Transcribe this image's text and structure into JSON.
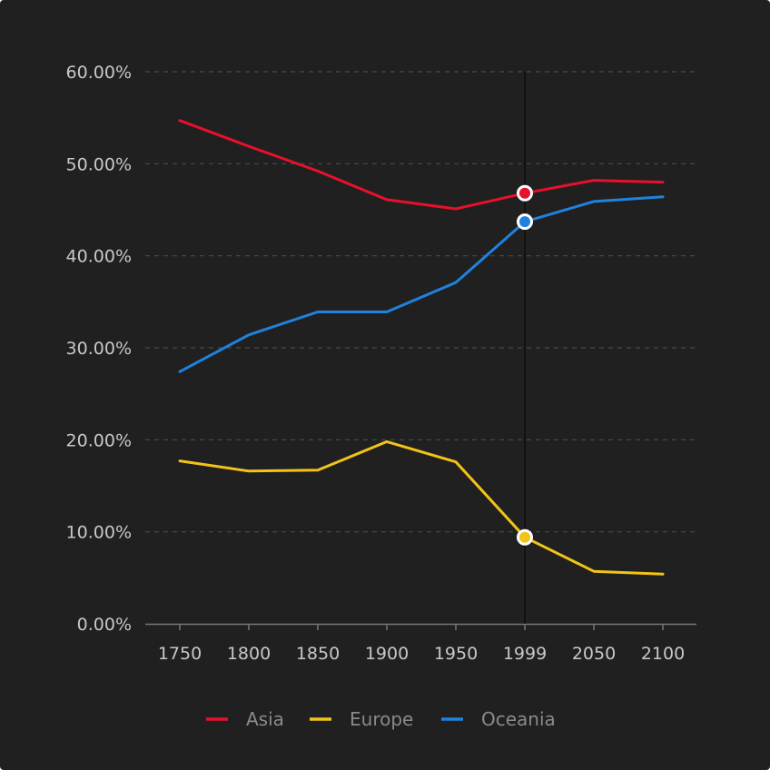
{
  "chart_data": {
    "type": "line",
    "categories": [
      "1750",
      "1800",
      "1850",
      "1900",
      "1950",
      "1999",
      "2050",
      "2100"
    ],
    "series": [
      {
        "name": "Asia",
        "color": "#e8102d",
        "values": [
          54.7,
          51.9,
          49.2,
          46.1,
          45.1,
          46.8,
          48.2,
          48.0
        ]
      },
      {
        "name": "Europe",
        "color": "#f2c318",
        "values": [
          17.7,
          16.6,
          16.7,
          19.8,
          17.6,
          9.4,
          5.7,
          5.4
        ]
      },
      {
        "name": "Oceania",
        "color": "#1f82de",
        "values": [
          27.4,
          31.4,
          33.9,
          33.9,
          37.1,
          43.7,
          45.9,
          46.4
        ]
      }
    ],
    "y_ticks": [
      "0.00%",
      "10.00%",
      "20.00%",
      "30.00%",
      "40.00%",
      "50.00%",
      "60.00%"
    ],
    "ylim": [
      0,
      60
    ],
    "grid": true,
    "highlighted_category": "1999",
    "legend_position": "bottom",
    "colors": {
      "background": "#202020",
      "axis": "#777777",
      "grid": "#4a4a4a",
      "tick_text": "#c8c8c8",
      "legend_text": "#8a8a8a"
    }
  }
}
